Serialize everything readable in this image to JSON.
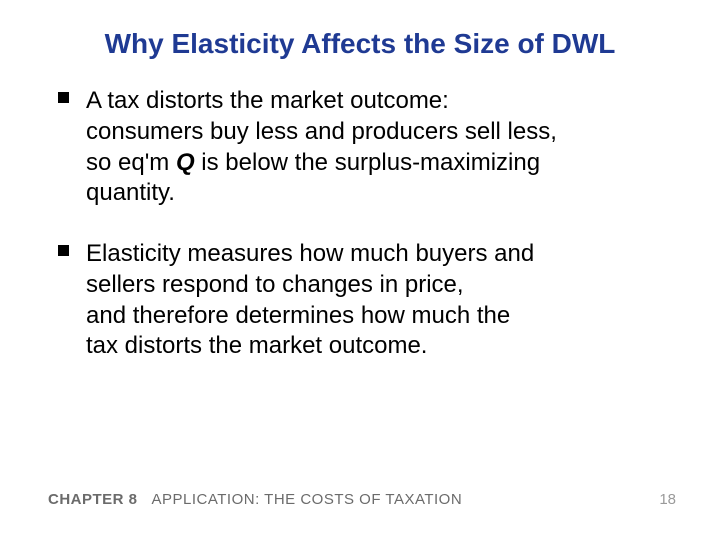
{
  "title": {
    "text": "Why Elasticity Affects the Size of DWL",
    "color": "#1f3a93",
    "fontsize": 28
  },
  "body": {
    "color": "#000000",
    "fontsize": 24,
    "bullets": [
      {
        "line1": "A tax distorts the market outcome:",
        "line2": "consumers buy less and producers sell less,",
        "line3_a": "so eq'm ",
        "line3_q": "Q",
        "line3_b": " is below the surplus-maximizing",
        "line4": "quantity."
      },
      {
        "line1": "Elasticity measures how much buyers and",
        "line2": "sellers respond to changes in price,",
        "line3": "and therefore determines how much the",
        "line4": "tax distorts the market outcome."
      }
    ]
  },
  "footer": {
    "chapter": "CHAPTER 8",
    "subtitle": "APPLICATION:  THE COSTS OF TAXATION",
    "color": "#6b6b6b",
    "fontsize": 15
  },
  "pagenum": {
    "text": "18",
    "color": "#9a9a9a",
    "fontsize": 15
  }
}
